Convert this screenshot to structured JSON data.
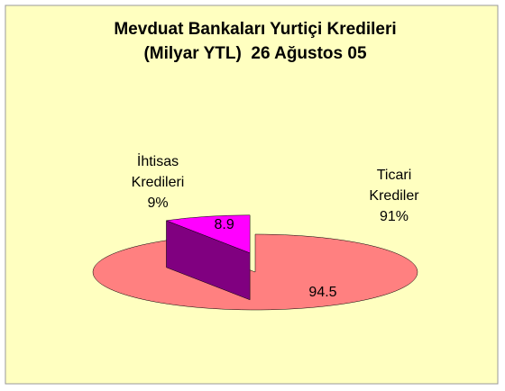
{
  "chart_data": {
    "type": "pie3d",
    "title": [
      "Mevduat Bankaları Yurtiçi Kredileri",
      "(Milyar YTL)  26 Ağustos 05"
    ],
    "categories": [
      "Ticari Krediler",
      "İhtisas Kredileri"
    ],
    "values": [
      94.5,
      8.9
    ],
    "percent_labels": [
      "91%",
      "9%"
    ],
    "colors": [
      "#ff8080",
      "#ff00ff"
    ],
    "side_colors": [
      "#804040",
      "#800080"
    ],
    "exploded": [
      false,
      true
    ]
  }
}
